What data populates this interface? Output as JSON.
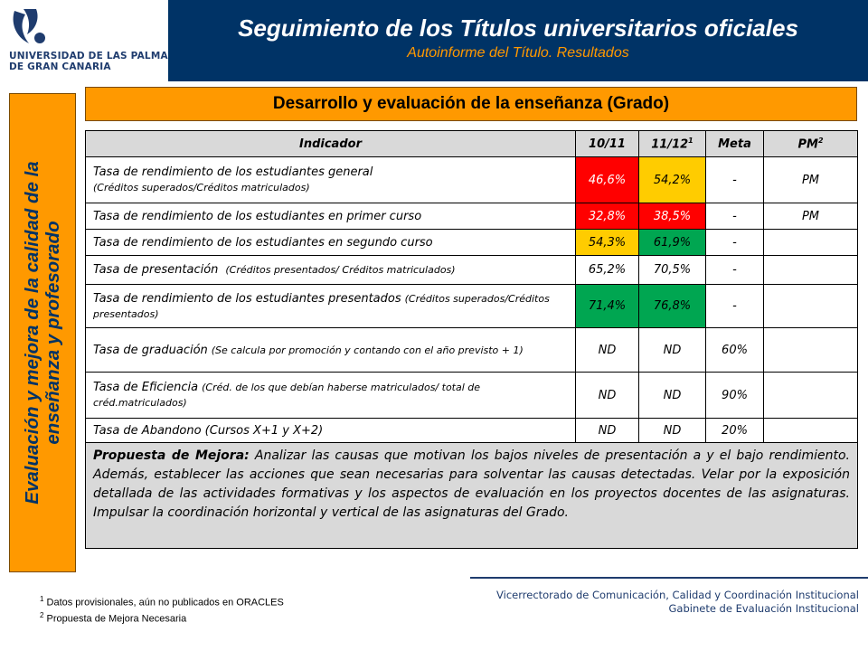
{
  "logo": {
    "line1": "UNIVERSIDAD DE LAS PALMAS",
    "line2": "DE GRAN CANARIA"
  },
  "header": {
    "title": "Seguimiento de los Títulos universitarios oficiales",
    "subtitle": "Autoinforme del Título. Resultados"
  },
  "sidebar": {
    "line1": "Evaluación y mejora de la calidad de la",
    "line2": "enseñanza y profesorado"
  },
  "section_title": "Desarrollo y evaluación de la enseñanza (Grado)",
  "table": {
    "headers": [
      "Indicador",
      "10/11",
      "11/12",
      "Meta",
      "PM"
    ],
    "header_sup_1": "1",
    "header_sup_2": "2",
    "rows": [
      {
        "indicator": "Tasa de rendimiento de los estudiantes general",
        "note": "(Créditos superados/Créditos matriculados)",
        "v1011": "46,6%",
        "v1112": "54,2%",
        "meta": "-",
        "pm": "PM"
      },
      {
        "indicator": "Tasa de rendimiento de los estudiantes en primer curso",
        "note": "",
        "v1011": "32,8%",
        "v1112": "38,5%",
        "meta": "-",
        "pm": "PM"
      },
      {
        "indicator": "Tasa de rendimiento de los estudiantes en segundo curso",
        "note": "",
        "v1011": "54,3%",
        "v1112": "61,9%",
        "meta": "-",
        "pm": ""
      },
      {
        "indicator": "Tasa de presentación",
        "note": "(Créditos presentados/ Créditos matriculados)",
        "v1011": "65,2%",
        "v1112": "70,5%",
        "meta": "-",
        "pm": ""
      },
      {
        "indicator": "Tasa de rendimiento de los estudiantes presentados",
        "note": "(Créditos superados/Créditos presentados)",
        "v1011": "71,4%",
        "v1112": "76,8%",
        "meta": "-",
        "pm": ""
      },
      {
        "indicator": "Tasa de graduación",
        "note": "(Se calcula por promoción y contando con el año previsto + 1)",
        "v1011": "ND",
        "v1112": "ND",
        "meta": "60%",
        "pm": ""
      },
      {
        "indicator": "Tasa de Eficiencia",
        "note": "(Créd. de los que debían haberse matriculados/ total de créd.matriculados)",
        "v1011": "ND",
        "v1112": "ND",
        "meta": "90%",
        "pm": ""
      },
      {
        "indicator": "Tasa de Abandono (Cursos X+1 y X+2)",
        "note": "",
        "v1011": "ND",
        "v1112": "ND",
        "meta": "20%",
        "pm": ""
      }
    ],
    "colors": {
      "red": "#ff0000",
      "yellow": "#ffcc00",
      "green": "#00a651"
    },
    "proposal_label": "Propuesta de Mejora:",
    "proposal_text": "Analizar las causas que motivan los bajos niveles de presentación a y el bajo rendimiento. Además, establecer las acciones que sean necesarias para solventar las causas detectadas. Velar por la exposición detallada de las actividades formativas y los aspectos de evaluación en los proyectos docentes de las asignaturas. Impulsar la coordinación horizontal y vertical de las asignaturas del Grado."
  },
  "footnotes": {
    "n1_sup": "1",
    "n1": "Datos provisionales, aún no publicados en ORACLES",
    "n2_sup": "2",
    "n2": "Propuesta de Mejora Necesaria"
  },
  "credits": {
    "line1": "Vicerrectorado de Comunicación, Calidad y Coordinación Institucional",
    "line2": "Gabinete de Evaluación Institucional"
  },
  "theme": {
    "navy": "#003366",
    "orange": "#ff9900",
    "gray": "#d9d9d9"
  }
}
